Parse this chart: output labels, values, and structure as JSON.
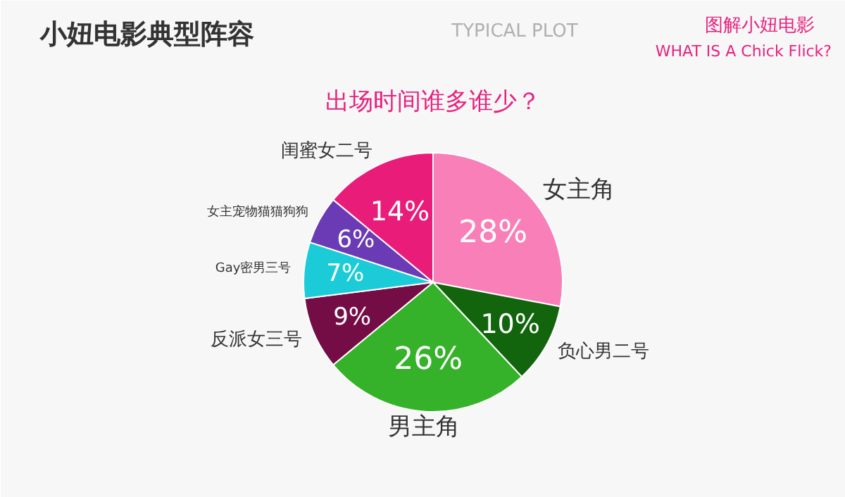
{
  "chart_data": {
    "type": "pie",
    "title": "小妞电影典型阵容",
    "subtitle": "出场时间谁多谁少？",
    "annotations": [
      "TYPICAL PLOT",
      "图解小妞电影",
      "WHAT IS A Chick Flick?"
    ],
    "categories": [
      "女主角",
      "负心男二号",
      "男主角",
      "反派女三号",
      "Gay密男三号",
      "女主宠物猫猫狗狗",
      "闺蜜女二号"
    ],
    "values": [
      28,
      10,
      26,
      9,
      7,
      6,
      14
    ],
    "value_labels": [
      "28%",
      "10%",
      "26%",
      "9%",
      "7%",
      "6%",
      "14%"
    ],
    "colors": [
      "#f97fb8",
      "#12650c",
      "#35b22a",
      "#740c45",
      "#1ccbd8",
      "#6a3bb5",
      "#e91c7a"
    ]
  }
}
